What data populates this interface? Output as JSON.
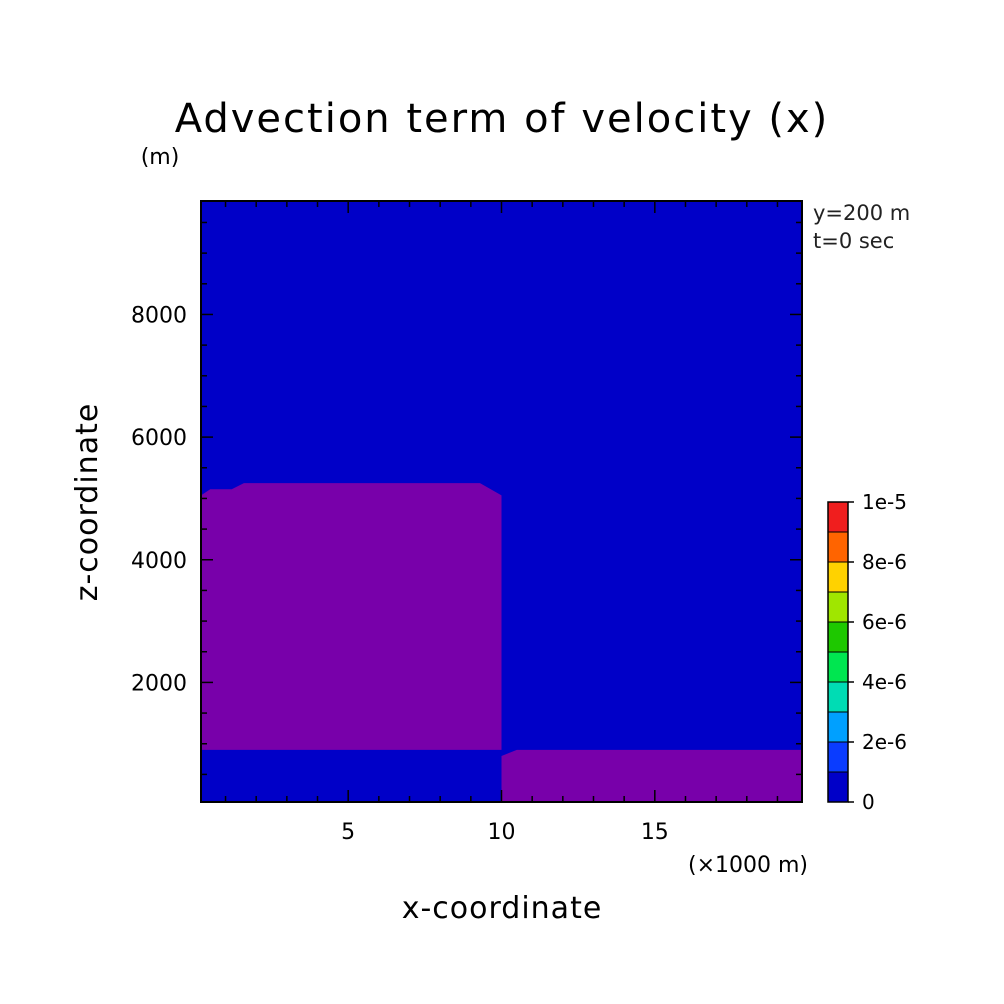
{
  "title": "Advection term of velocity (x)",
  "z_unit": "(m)",
  "x_unit": "(×1000 m)",
  "info_y": "y=200 m",
  "info_t": "t=0 sec",
  "chart_data": {
    "type": "heatmap",
    "title": "Advection term of velocity (x)",
    "xlabel": "x-coordinate",
    "ylabel": "z-coordinate",
    "xlim": [
      0.2,
      19.8
    ],
    "ylim": [
      50,
      9850
    ],
    "x_ticks": [
      5,
      10,
      15
    ],
    "y_ticks": [
      2000,
      4000,
      6000,
      8000
    ],
    "x_tick_labels": [
      "5",
      "10",
      "15"
    ],
    "y_tick_labels": [
      "2000",
      "4000",
      "6000",
      "8000"
    ],
    "background_level": 0,
    "background_color": "#0000c8",
    "regions": [
      {
        "level": "below 0",
        "color": "#7800aa",
        "polygon_x": [
          0.2,
          0.5,
          1.2,
          1.6,
          9.3,
          10.0,
          10.0,
          0.2
        ],
        "polygon_z": [
          5050,
          5150,
          5150,
          5250,
          5250,
          5050,
          900,
          900
        ]
      },
      {
        "level": "below 0",
        "color": "#7800aa",
        "polygon_x": [
          10.0,
          10.5,
          19.8,
          19.8,
          10.0
        ],
        "polygon_z": [
          800,
          900,
          900,
          50,
          50
        ]
      }
    ],
    "colorbar": {
      "levels": [
        "0",
        "2e-6",
        "4e-6",
        "6e-6",
        "8e-6",
        "1e-5"
      ],
      "colors": [
        "#0000c8",
        "#0a3cff",
        "#00a0ff",
        "#00dcb4",
        "#00e650",
        "#1ec800",
        "#a0e600",
        "#ffd200",
        "#ff6400",
        "#f01e1e"
      ]
    },
    "grid": false
  }
}
